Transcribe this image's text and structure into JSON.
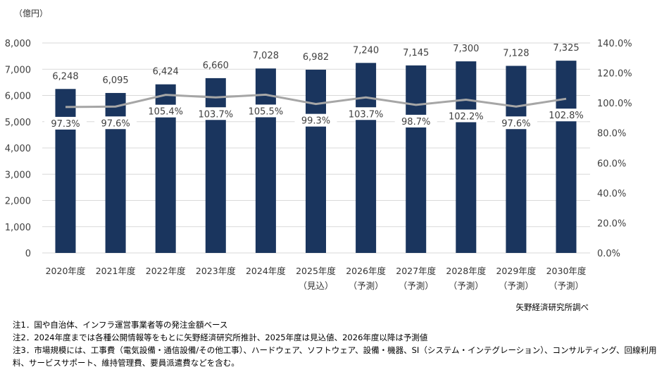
{
  "chart_data": {
    "type": "bar+line",
    "unit_label": "（億円）",
    "categories": [
      "2020年度",
      "2021年度",
      "2022年度",
      "2023年度",
      "2024年度",
      "2025年度",
      "2026年度",
      "2027年度",
      "2028年度",
      "2029年度",
      "2030年度"
    ],
    "category_sublabels": [
      "",
      "",
      "",
      "",
      "",
      "（見込）",
      "（予測）",
      "（予測）",
      "（予測）",
      "（予測）",
      "（予測）"
    ],
    "bar_values": [
      6248,
      6095,
      6424,
      6660,
      7028,
      6982,
      7240,
      7145,
      7300,
      7128,
      7325
    ],
    "bar_labels": [
      "6,248",
      "6,095",
      "6,424",
      "6,660",
      "7,028",
      "6,982",
      "7,240",
      "7,145",
      "7,300",
      "7,128",
      "7,325"
    ],
    "line_values": [
      97.3,
      97.6,
      105.4,
      103.7,
      105.5,
      99.3,
      103.7,
      98.7,
      102.2,
      97.6,
      102.8
    ],
    "line_labels": [
      "97.3%",
      "97.6%",
      "105.4%",
      "103.7%",
      "105.5%",
      "99.3%",
      "103.7%",
      "98.7%",
      "102.2%",
      "97.6%",
      "102.8%"
    ],
    "y_left": {
      "range": [
        0,
        8000
      ],
      "ticks": [
        "0",
        "1,000",
        "2,000",
        "3,000",
        "4,000",
        "5,000",
        "6,000",
        "7,000",
        "8,000"
      ]
    },
    "y_right": {
      "range": [
        0,
        140
      ],
      "ticks": [
        "0.0%",
        "20.0%",
        "40.0%",
        "60.0%",
        "80.0%",
        "100.0%",
        "120.0%",
        "140.0%"
      ]
    },
    "grid": true,
    "colors": {
      "bar": "#1a355e",
      "line": "#a6a6a6",
      "grid": "#d9d9d9"
    }
  },
  "source": "矢野経済研究所調べ",
  "notes": [
    "注1．国や自治体、インフラ運営事業者等の発注金額ベース",
    "注2．2024年度までは各種公開情報等をもとに矢野経済研究所推計、2025年度は見込値、2026年度以降は予測値",
    "注3．市場規模には、工事費（電気設備・通信設備/その他工事）、ハードウェア、ソフトウェア、設備・機器、SI（システム・インテグレーション）、コンサルティング、回線利用",
    "料、サービスサポート、維持管理費、要員派遣費などを含む。"
  ]
}
